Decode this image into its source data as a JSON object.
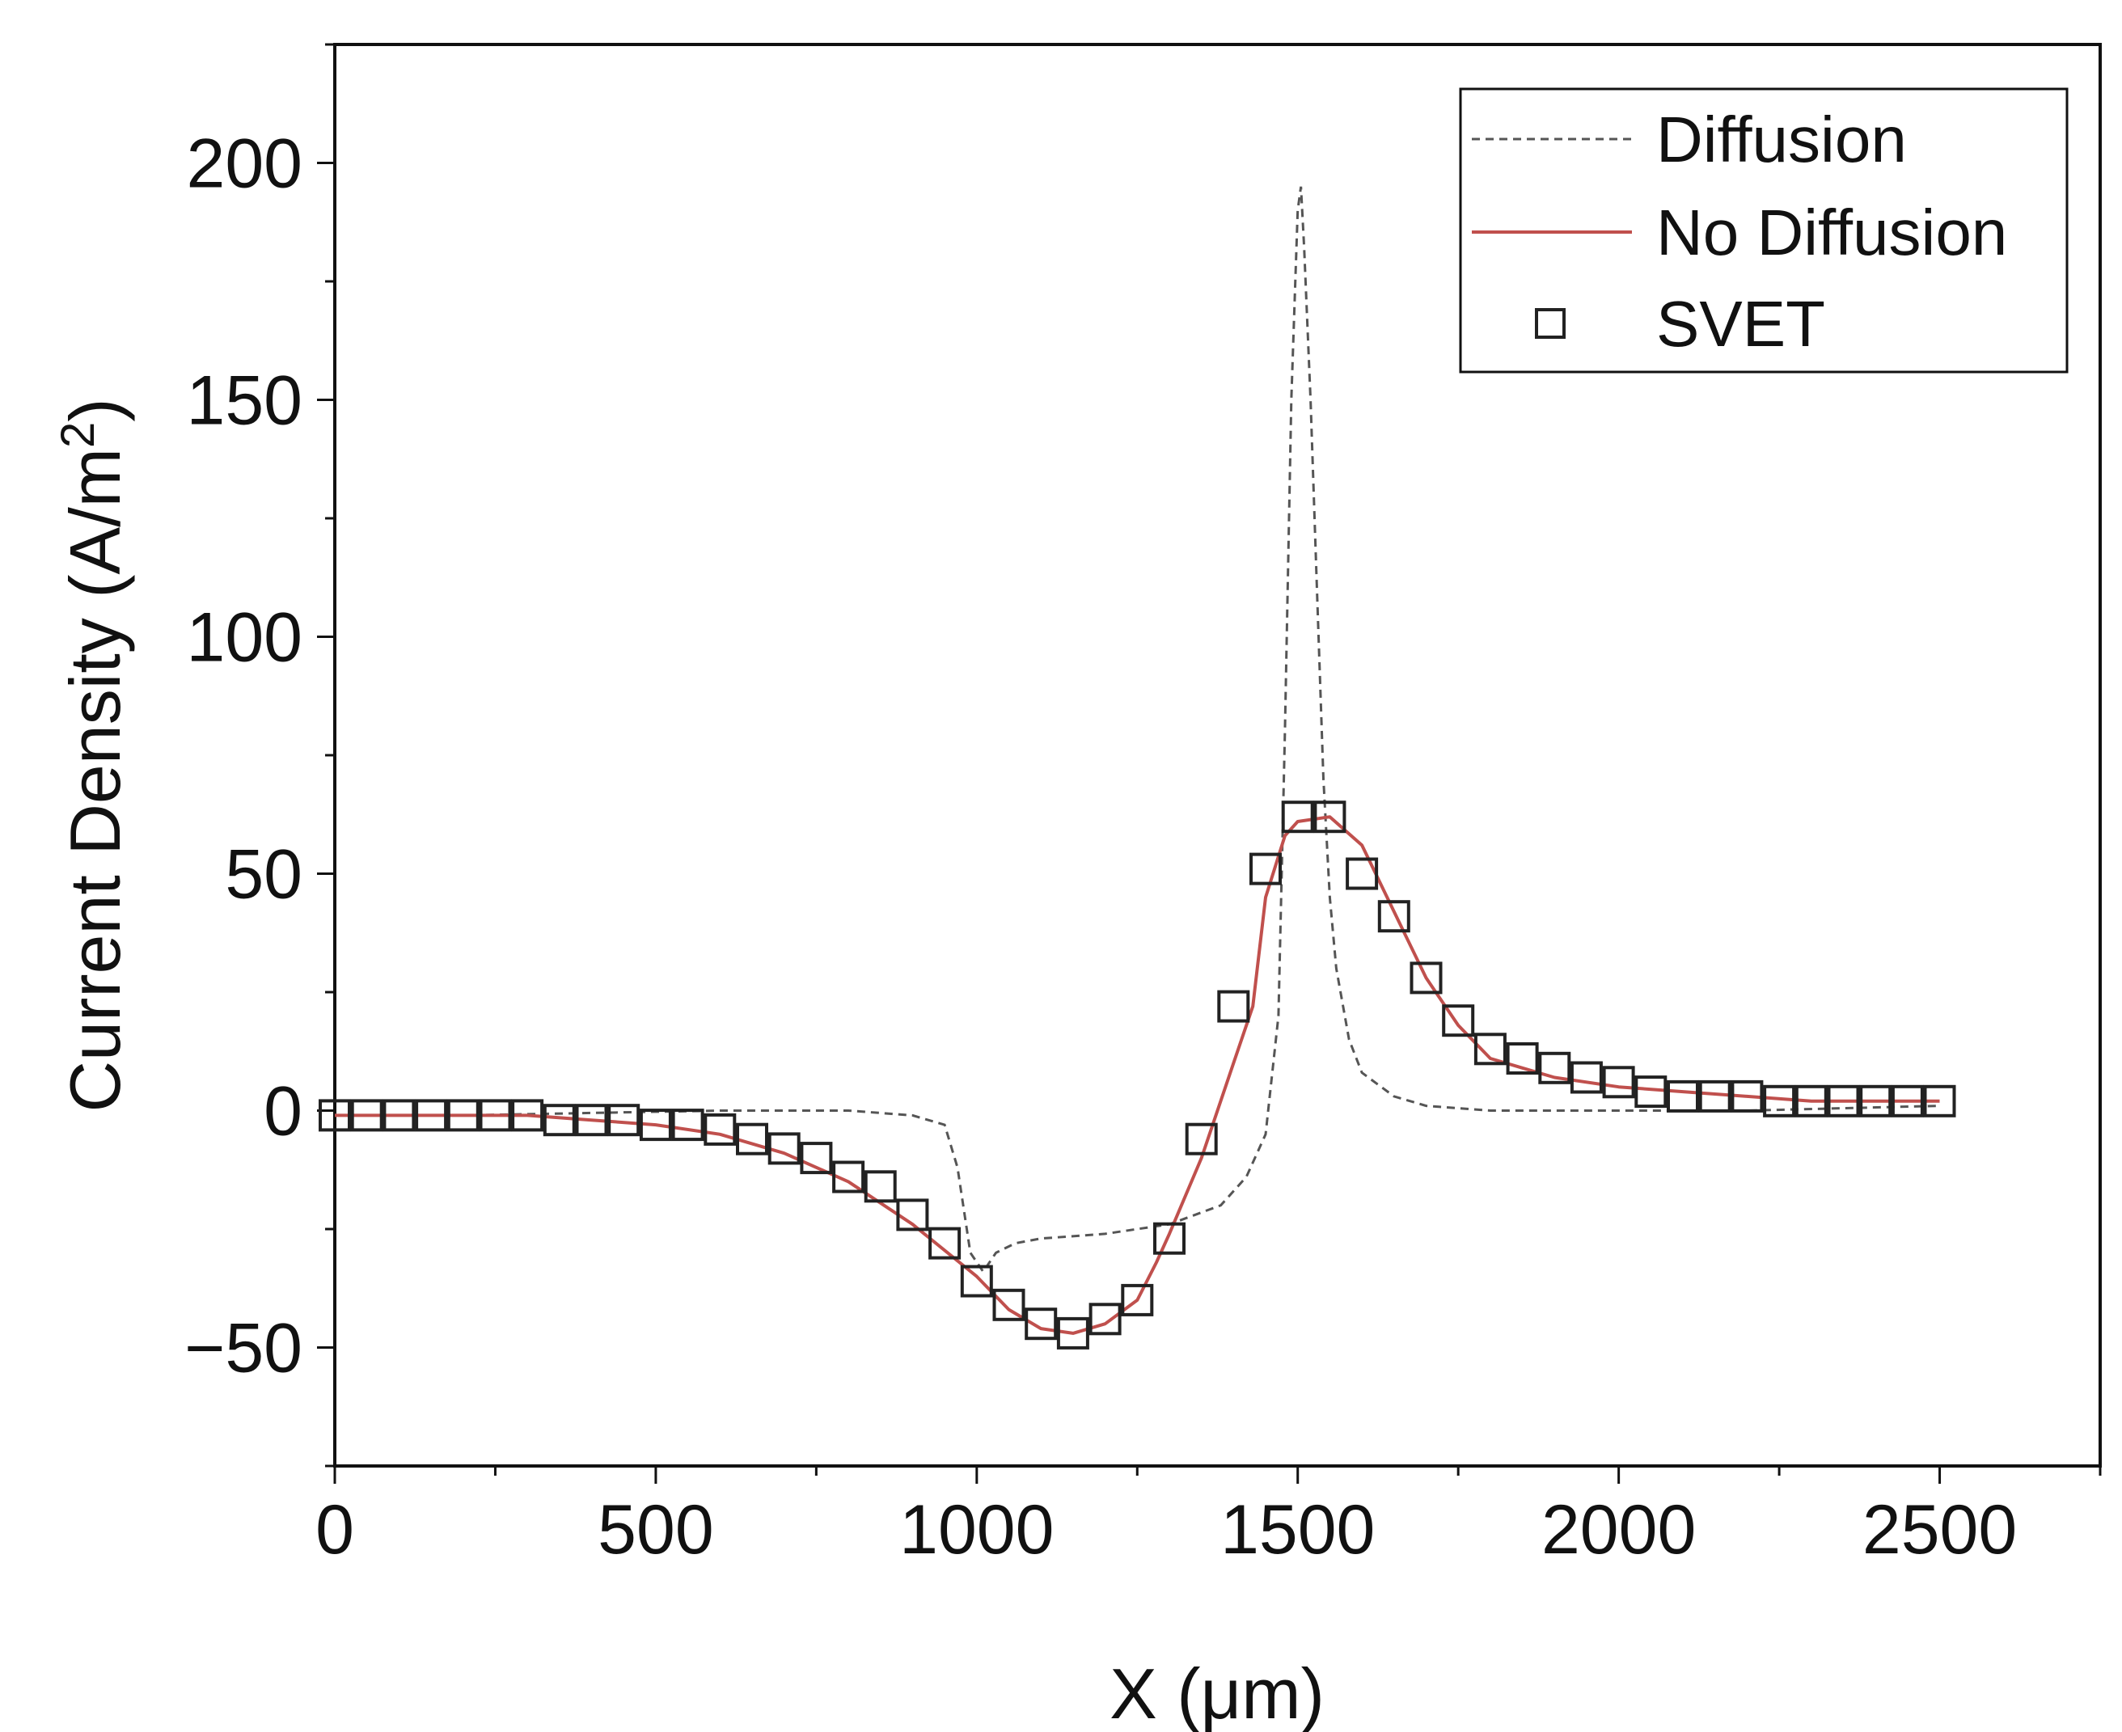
{
  "chart_data": {
    "type": "line",
    "title": "",
    "xlabel": "X (μm)",
    "ylabel_main": "Current Density (A/m",
    "ylabel_sup": "2",
    "ylabel_close": ")",
    "xlim": [
      0,
      2750
    ],
    "ylim": [
      -75,
      225
    ],
    "xticks": [
      0,
      500,
      1000,
      1500,
      2000,
      2500
    ],
    "yticks": [
      -50,
      0,
      50,
      100,
      150,
      200
    ],
    "xtick_labels": [
      "0",
      "500",
      "1000",
      "1500",
      "2000",
      "2500"
    ],
    "ytick_labels": [
      "−50",
      "0",
      "50",
      "100",
      "150",
      "200"
    ],
    "x_minor_step": 250,
    "y_minor_step": 25,
    "grid": false,
    "legend_position": "top-right",
    "series": [
      {
        "name": "Diffusion",
        "style": "dashed-line",
        "color": "#555555",
        "x": [
          0,
          200,
          400,
          600,
          800,
          900,
          950,
          970,
          990,
          1010,
          1030,
          1060,
          1100,
          1200,
          1300,
          1380,
          1420,
          1450,
          1470,
          1480,
          1490,
          1500,
          1505,
          1510,
          1520,
          1530,
          1540,
          1550,
          1560,
          1580,
          1600,
          1650,
          1700,
          1800,
          2000,
          2200,
          2500
        ],
        "y": [
          -1,
          -1,
          -0.5,
          0,
          0,
          -1,
          -3,
          -12,
          -30,
          -34,
          -30,
          -28,
          -27,
          -26,
          -24,
          -20,
          -14,
          -5,
          20,
          80,
          150,
          190,
          195,
          182,
          150,
          110,
          70,
          45,
          30,
          15,
          8,
          3,
          1,
          0,
          0,
          0,
          1
        ]
      },
      {
        "name": "No Diffusion",
        "style": "solid-line",
        "color": "#c0504d",
        "x": [
          0,
          100,
          200,
          300,
          400,
          500,
          600,
          700,
          800,
          900,
          1000,
          1050,
          1100,
          1150,
          1200,
          1250,
          1280,
          1300,
          1350,
          1400,
          1430,
          1450,
          1480,
          1500,
          1550,
          1600,
          1650,
          1700,
          1750,
          1800,
          1850,
          1900,
          2000,
          2100,
          2200,
          2300,
          2400,
          2500
        ],
        "y": [
          -1,
          -1,
          -1,
          -1,
          -2,
          -3,
          -5,
          -9,
          -15,
          -24,
          -35,
          -42,
          -46,
          -47,
          -45,
          -40,
          -32,
          -26,
          -10,
          10,
          22,
          45,
          58,
          61,
          62,
          56,
          42,
          28,
          18,
          11,
          9,
          7,
          5,
          4,
          3,
          2,
          2,
          2
        ]
      },
      {
        "name": "SVET",
        "style": "open-square-markers",
        "color": "#222222",
        "x": [
          0,
          50,
          100,
          150,
          200,
          250,
          300,
          350,
          400,
          450,
          500,
          550,
          600,
          650,
          700,
          750,
          800,
          850,
          900,
          950,
          1000,
          1050,
          1100,
          1150,
          1200,
          1250,
          1300,
          1350,
          1400,
          1450,
          1500,
          1550,
          1600,
          1650,
          1700,
          1750,
          1800,
          1850,
          1900,
          1950,
          2000,
          2050,
          2100,
          2150,
          2200,
          2250,
          2300,
          2350,
          2400,
          2450,
          2500
        ],
        "y": [
          -1,
          -1,
          -1,
          -1,
          -1,
          -1,
          -1,
          -2,
          -2,
          -2,
          -3,
          -3,
          -4,
          -6,
          -8,
          -10,
          -14,
          -16,
          -22,
          -28,
          -36,
          -41,
          -45,
          -47,
          -44,
          -40,
          -27,
          -6,
          22,
          51,
          62,
          62,
          50,
          41,
          28,
          19,
          13,
          11,
          9,
          7,
          6,
          4,
          3,
          3,
          3,
          2,
          2,
          2,
          2,
          2,
          2
        ]
      }
    ]
  }
}
